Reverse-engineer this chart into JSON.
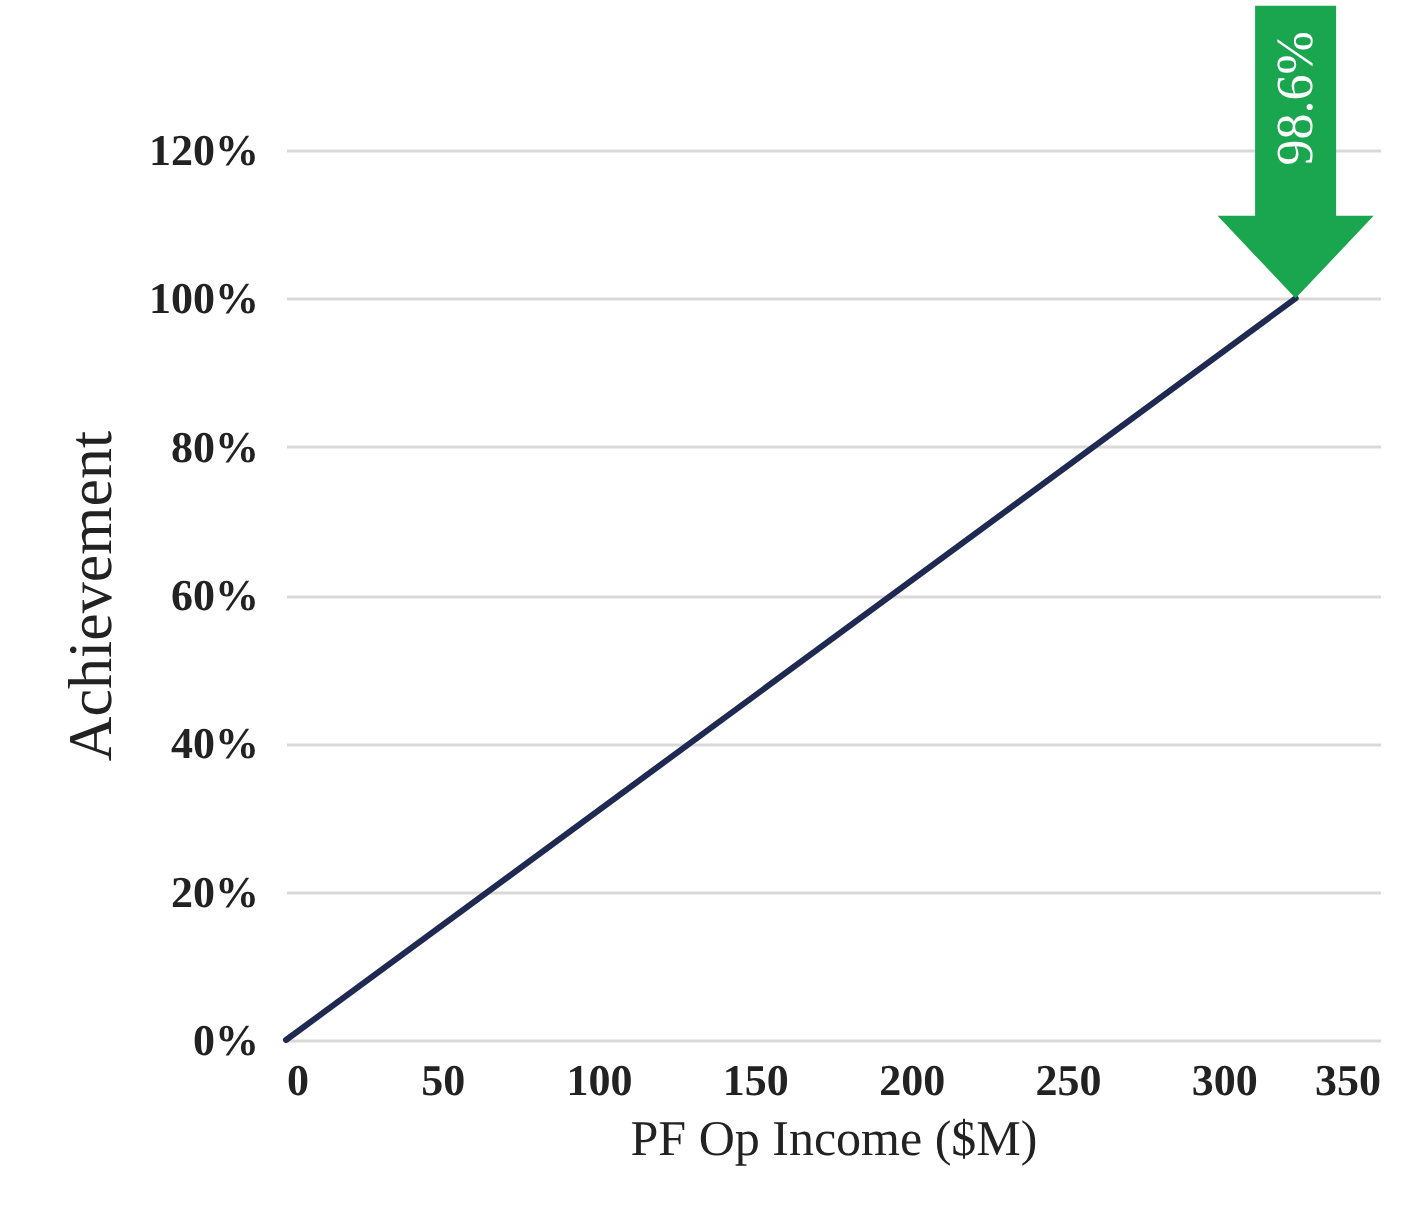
{
  "chart_data": {
    "type": "line",
    "xlabel": "PF Op Income ($M)",
    "ylabel": "Achievement",
    "x": [
      0,
      323
    ],
    "series": [
      {
        "color": "#1f2a52",
        "values": [
          0,
          100
        ]
      }
    ],
    "xlim": [
      0,
      350
    ],
    "xticks": [
      0,
      50,
      100,
      150,
      200,
      250,
      300,
      350
    ],
    "ylim": [
      0,
      120
    ],
    "yticks": [
      {
        "value": 0,
        "label": "0%"
      },
      {
        "value": 20,
        "label": "20%"
      },
      {
        "value": 40,
        "label": "40%"
      },
      {
        "value": 60,
        "label": "60%"
      },
      {
        "value": 80,
        "label": "80%"
      },
      {
        "value": 100,
        "label": "100%"
      },
      {
        "value": 120,
        "label": "120%"
      }
    ],
    "grid": "y",
    "marker": "none",
    "line_style": "solid",
    "annotations": [
      {
        "text": "98.6%",
        "x": 323,
        "y": 100
      }
    ]
  }
}
